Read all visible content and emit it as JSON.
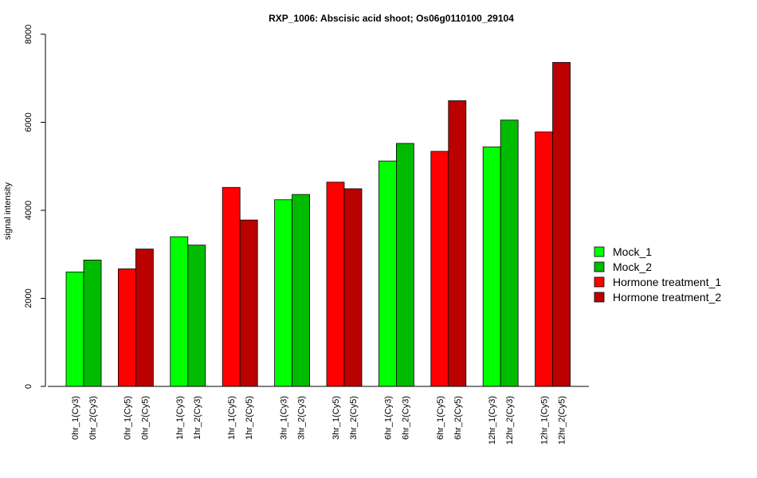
{
  "chart_data": {
    "type": "bar",
    "title": "RXP_1006: Abscisic acid shoot; Os06g0110100_29104",
    "xlabel": "",
    "ylabel": "signal intensity",
    "ylim": [
      0,
      8000
    ],
    "yticks": [
      0,
      2000,
      4000,
      6000,
      8000
    ],
    "grid": false,
    "legend_position": "right",
    "groups": [
      {
        "labels": [
          "0hr_1(Cy3)",
          "0hr_2(Cy3)"
        ],
        "values": [
          2600,
          2870
        ],
        "colors": [
          "#00ff00",
          "#00bb00"
        ]
      },
      {
        "labels": [
          "0hr_1(Cy5)",
          "0hr_2(Cy5)"
        ],
        "values": [
          2670,
          3120
        ],
        "colors": [
          "#ff0000",
          "#bb0000"
        ]
      },
      {
        "labels": [
          "1hr_1(Cy3)",
          "1hr_2(Cy3)"
        ],
        "values": [
          3400,
          3210
        ],
        "colors": [
          "#00ff00",
          "#00bb00"
        ]
      },
      {
        "labels": [
          "1hr_1(Cy5)",
          "1hr_2(Cy5)"
        ],
        "values": [
          4520,
          3780
        ],
        "colors": [
          "#ff0000",
          "#bb0000"
        ]
      },
      {
        "labels": [
          "3hr_1(Cy3)",
          "3hr_2(Cy3)"
        ],
        "values": [
          4240,
          4360
        ],
        "colors": [
          "#00ff00",
          "#00bb00"
        ]
      },
      {
        "labels": [
          "3hr_1(Cy5)",
          "3hr_2(Cy5)"
        ],
        "values": [
          4640,
          4490
        ],
        "colors": [
          "#ff0000",
          "#bb0000"
        ]
      },
      {
        "labels": [
          "6hr_1(Cy3)",
          "6hr_2(Cy3)"
        ],
        "values": [
          5120,
          5520
        ],
        "colors": [
          "#00ff00",
          "#00bb00"
        ]
      },
      {
        "labels": [
          "6hr_1(Cy5)",
          "6hr_2(Cy5)"
        ],
        "values": [
          5340,
          6490
        ],
        "colors": [
          "#ff0000",
          "#bb0000"
        ]
      },
      {
        "labels": [
          "12hr_1(Cy3)",
          "12hr_2(Cy3)"
        ],
        "values": [
          5440,
          6050
        ],
        "colors": [
          "#00ff00",
          "#00bb00"
        ]
      },
      {
        "labels": [
          "12hr_1(Cy5)",
          "12hr_2(Cy5)"
        ],
        "values": [
          5780,
          7360
        ],
        "colors": [
          "#ff0000",
          "#bb0000"
        ]
      }
    ],
    "legend": [
      {
        "label": "Mock_1",
        "color": "#00ff00"
      },
      {
        "label": "Mock_2",
        "color": "#00bb00"
      },
      {
        "label": "Hormone treatment_1",
        "color": "#ff0000"
      },
      {
        "label": "Hormone treatment_2",
        "color": "#bb0000"
      }
    ]
  }
}
